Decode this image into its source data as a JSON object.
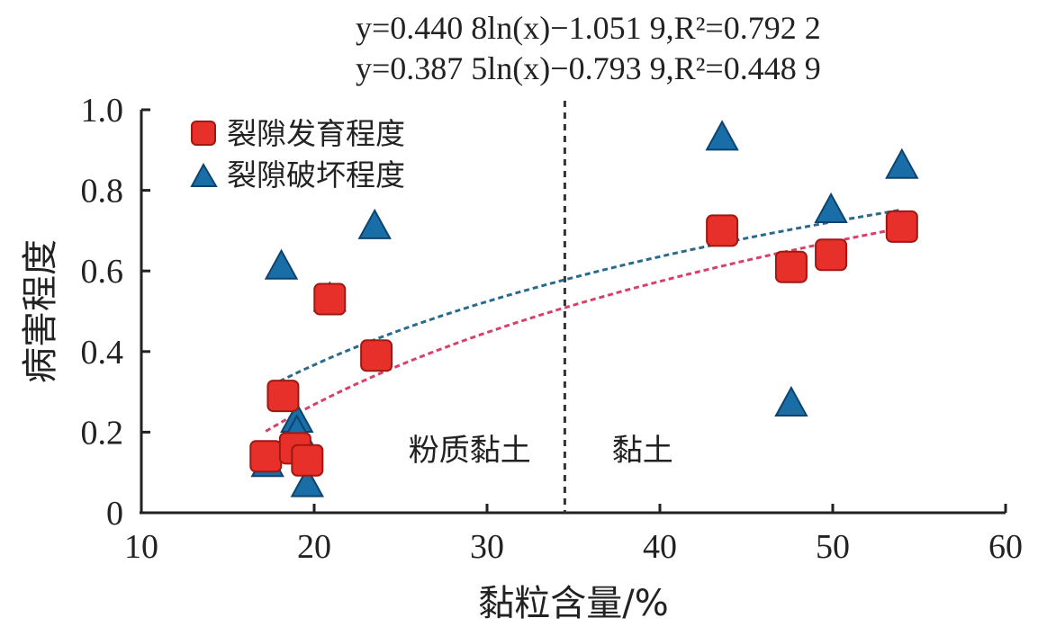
{
  "chart_data": {
    "type": "scatter",
    "equations": [
      "y=0.440 8ln(x)−1.051 9,R²=0.792 2",
      "y=0.387 5ln(x)−0.793 9,R²=0.448 9"
    ],
    "xlabel": "黏粒含量/%",
    "ylabel": "病害程度",
    "xlim": [
      10,
      60
    ],
    "ylim": [
      0,
      1.0
    ],
    "xticks": [
      10,
      20,
      30,
      40,
      50,
      60
    ],
    "yticks": [
      0,
      0.2,
      0.4,
      0.6,
      0.8,
      1.0
    ],
    "ytick_labels": [
      "0",
      "0.2",
      "0.4",
      "0.6",
      "0.8",
      "1.0"
    ],
    "divider_x": 34.5,
    "region_labels": [
      {
        "text": "粉质黏土",
        "x": 29,
        "y": 0.13
      },
      {
        "text": "黏土",
        "x": 39,
        "y": 0.13
      }
    ],
    "legend_placement": "top-left",
    "series": [
      {
        "name": "裂隙发育程度",
        "marker": "square",
        "color": "#e8302a",
        "edge": "#a01812",
        "trend_color": "#d8406a",
        "x": [
          17.2,
          18.2,
          18.9,
          19.6,
          20.9,
          23.6,
          43.6,
          47.6,
          49.9,
          54.0
        ],
        "y": [
          0.14,
          0.29,
          0.16,
          0.13,
          0.53,
          0.39,
          0.7,
          0.61,
          0.64,
          0.71
        ],
        "trend": {
          "a": 0.4408,
          "b": -1.0519,
          "xmin": 17.2,
          "xmax": 54.0
        }
      },
      {
        "name": "裂隙破坏程度",
        "marker": "triangle",
        "color": "#1a6ea8",
        "edge": "#0c4470",
        "trend_color": "#2a6a8a",
        "x": [
          17.3,
          18.1,
          19.0,
          19.0,
          19.6,
          20.9,
          23.5,
          43.6,
          47.6,
          49.9,
          54.0
        ],
        "y": [
          0.12,
          0.61,
          0.23,
          0.2,
          0.07,
          0.53,
          0.71,
          0.93,
          0.27,
          0.75,
          0.86
        ],
        "trend": {
          "a": 0.3875,
          "b": -0.7939,
          "xmin": 18.0,
          "xmax": 54.0
        }
      }
    ]
  }
}
